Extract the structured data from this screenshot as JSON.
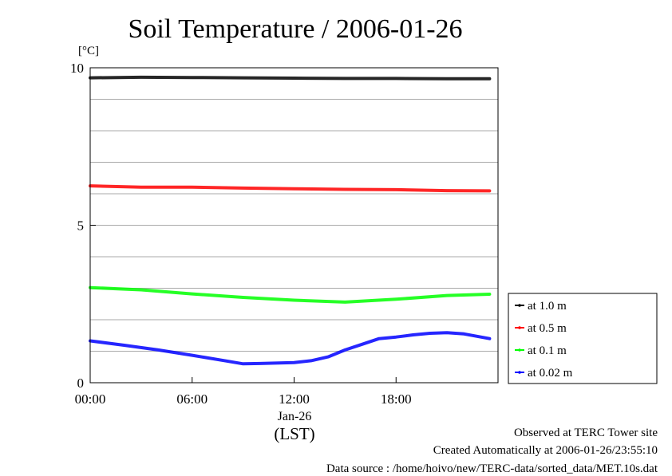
{
  "chart_data": {
    "type": "line",
    "title": "Soil Temperature / 2006-01-26",
    "ylabel": "[°C]",
    "xlabel": "(LST)",
    "ylim": [
      0,
      10
    ],
    "xlim": [
      0,
      24
    ],
    "yticks": [
      {
        "value": 0,
        "label": "0"
      },
      {
        "value": 5,
        "label": "5"
      },
      {
        "value": 10,
        "label": "10"
      }
    ],
    "ygrid": [
      1,
      2,
      3,
      4,
      5,
      6,
      7,
      8,
      9
    ],
    "xticks": [
      {
        "value": 0,
        "label": "00:00"
      },
      {
        "value": 6,
        "label": "06:00"
      },
      {
        "value": 12,
        "label": "12:00"
      },
      {
        "value": 18,
        "label": "18:00"
      }
    ],
    "xdate_label": "Jan-26",
    "grid": true,
    "legend_position": "right",
    "series": [
      {
        "name": "at 1.0 m",
        "color": "#000000",
        "x": [
          0,
          3,
          6,
          9,
          12,
          15,
          18,
          21,
          23.5
        ],
        "y": [
          9.68,
          9.7,
          9.69,
          9.68,
          9.67,
          9.66,
          9.66,
          9.65,
          9.65
        ]
      },
      {
        "name": "at 0.5 m",
        "color": "#ff0000",
        "x": [
          0,
          3,
          6,
          9,
          12,
          15,
          18,
          21,
          23.5
        ],
        "y": [
          6.25,
          6.21,
          6.21,
          6.18,
          6.16,
          6.14,
          6.13,
          6.1,
          6.09
        ]
      },
      {
        "name": "at 0.1 m",
        "color": "#00ff00",
        "x": [
          0,
          3,
          6,
          9,
          12,
          15,
          18,
          21,
          23.5
        ],
        "y": [
          3.02,
          2.95,
          2.82,
          2.71,
          2.62,
          2.56,
          2.65,
          2.77,
          2.81
        ]
      },
      {
        "name": "at 0.02 m",
        "color": "#0000ff",
        "x": [
          0,
          2,
          4,
          6,
          8,
          9,
          10,
          12,
          13,
          14,
          15,
          16,
          17,
          18,
          19,
          20,
          21,
          22,
          23.5
        ],
        "y": [
          1.33,
          1.19,
          1.04,
          0.87,
          0.69,
          0.6,
          0.61,
          0.64,
          0.7,
          0.82,
          1.04,
          1.22,
          1.4,
          1.45,
          1.52,
          1.57,
          1.59,
          1.55,
          1.4
        ]
      }
    ]
  },
  "footer": {
    "observed": "Observed at TERC Tower site",
    "created": "Created Automatically at 2006-01-26/23:55:10",
    "source": "Data source : /home/hoivo/new/TERC-data/sorted_data/MET.10s.dat"
  }
}
